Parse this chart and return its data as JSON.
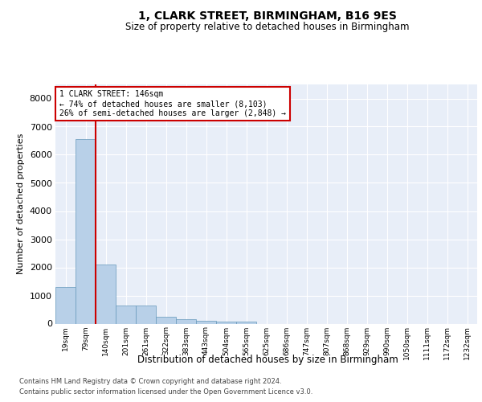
{
  "title1": "1, CLARK STREET, BIRMINGHAM, B16 9ES",
  "title2": "Size of property relative to detached houses in Birmingham",
  "xlabel": "Distribution of detached houses by size in Birmingham",
  "ylabel": "Number of detached properties",
  "bin_labels": [
    "19sqm",
    "79sqm",
    "140sqm",
    "201sqm",
    "261sqm",
    "322sqm",
    "383sqm",
    "443sqm",
    "504sqm",
    "565sqm",
    "625sqm",
    "686sqm",
    "747sqm",
    "807sqm",
    "868sqm",
    "929sqm",
    "990sqm",
    "1050sqm",
    "1111sqm",
    "1172sqm",
    "1232sqm"
  ],
  "bar_values": [
    1300,
    6550,
    2100,
    650,
    650,
    250,
    150,
    100,
    80,
    80,
    0,
    0,
    0,
    0,
    0,
    0,
    0,
    0,
    0,
    0,
    0
  ],
  "bar_color": "#b8d0e8",
  "bar_edge_color": "#6699bb",
  "background_color": "#e8eef8",
  "grid_color": "#ffffff",
  "property_line_color": "#cc0000",
  "annotation_label": "1 CLARK STREET: 146sqm",
  "annotation_line1": "← 74% of detached houses are smaller (8,103)",
  "annotation_line2": "26% of semi-detached houses are larger (2,848) →",
  "ylim": [
    0,
    8500
  ],
  "yticks": [
    0,
    1000,
    2000,
    3000,
    4000,
    5000,
    6000,
    7000,
    8000
  ],
  "footnote1": "Contains HM Land Registry data © Crown copyright and database right 2024.",
  "footnote2": "Contains public sector information licensed under the Open Government Licence v3.0."
}
